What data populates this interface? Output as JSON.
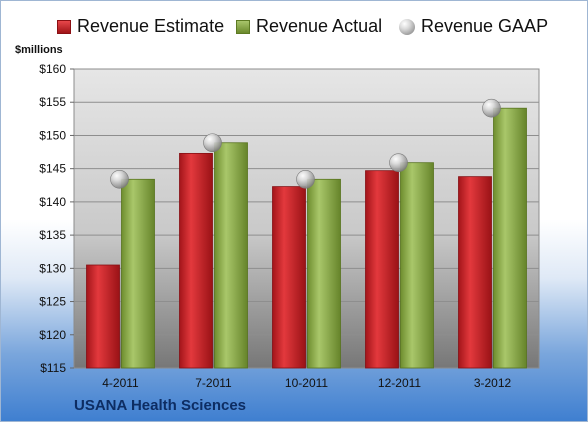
{
  "chart_data": {
    "type": "bar",
    "title": "",
    "ylabel": "$millions",
    "xlabel": "",
    "subtitle_bottom": "USANA Health Sciences",
    "categories": [
      "4-2011",
      "7-2011",
      "10-2011",
      "12-2011",
      "3-2012"
    ],
    "series": [
      {
        "name": "Revenue Estimate",
        "kind": "bar",
        "color": "#c8262a",
        "values": [
          130.5,
          147.3,
          142.3,
          144.7,
          143.8
        ]
      },
      {
        "name": "Revenue Actual",
        "kind": "bar",
        "color": "#8eab4c",
        "values": [
          143.4,
          148.9,
          143.4,
          145.9,
          154.1
        ]
      },
      {
        "name": "Revenue GAAP",
        "kind": "marker",
        "color": "#bdbdbd",
        "values": [
          143.4,
          148.9,
          143.4,
          145.9,
          154.1
        ]
      }
    ],
    "ylim": [
      115,
      160
    ],
    "yticks": [
      115,
      120,
      125,
      130,
      135,
      140,
      145,
      150,
      155,
      160
    ],
    "ytick_labels": [
      "$115",
      "$120",
      "$125",
      "$130",
      "$135",
      "$140",
      "$145",
      "$150",
      "$155",
      "$160"
    ],
    "grid": true,
    "legend_position": "top"
  }
}
